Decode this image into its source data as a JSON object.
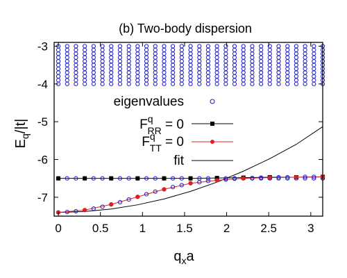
{
  "chart_data": {
    "type": "scatter",
    "title": "(b) Two-body dispersion",
    "xlabel": "q",
    "xlabel_sub": "x",
    "xlabel_tail": "a",
    "ylabel": "E",
    "ylabel_sub": "q",
    "ylabel_tail": "/|t|",
    "xlim": [
      -0.05,
      3.14159
    ],
    "ylim": [
      -7.5,
      -2.9
    ],
    "xticks": [
      0,
      0.5,
      1,
      1.5,
      2,
      2.5,
      3
    ],
    "xticklabels": [
      "0",
      "0.5",
      "1",
      "1.5",
      "2",
      "2.5",
      "3"
    ],
    "yticks": [
      -7,
      -6,
      -5,
      -4,
      -3
    ],
    "yticklabels": [
      "-7",
      "-6",
      "-5",
      "-4",
      "-3"
    ],
    "legend_position": "right-middle",
    "series": [
      {
        "name": "eigenvalues",
        "kind": "open-circles",
        "color": "#1a1acc",
        "x": [
          0.0,
          0.105,
          0.209,
          0.314,
          0.419,
          0.524,
          0.628,
          0.733,
          0.838,
          0.942,
          1.047,
          1.152,
          1.257,
          1.361,
          1.466,
          1.571,
          1.676,
          1.78,
          1.885,
          1.99,
          2.094,
          2.199,
          2.304,
          2.409,
          2.513,
          2.618,
          2.723,
          2.827,
          2.932,
          3.037,
          3.142
        ],
        "band_lower_y": [
          -7.4,
          -7.39,
          -7.37,
          -7.34,
          -7.3,
          -7.25,
          -7.19,
          -7.13,
          -7.06,
          -6.99,
          -6.92,
          -6.85,
          -6.79,
          -6.73,
          -6.68,
          -6.63,
          -6.6,
          -6.57,
          -6.55,
          -6.53,
          -6.51,
          -6.5,
          -6.49,
          -6.48,
          -6.48,
          -6.47,
          -6.47,
          -6.47,
          -6.46,
          -6.46,
          -6.46
        ],
        "band_flat_y": -6.5,
        "continuum_y": [
          -3.0,
          -3.1,
          -3.2,
          -3.3,
          -3.4,
          -3.5,
          -3.6,
          -3.7,
          -3.8,
          -3.9,
          -4.0
        ]
      },
      {
        "name": "F_RR^q = 0",
        "legend_main": "F",
        "legend_sup": "q",
        "legend_sub": "RR",
        "legend_tail": " = 0",
        "kind": "line-squares",
        "color": "#000000",
        "x": [
          0.0,
          0.314,
          0.628,
          0.942,
          1.257,
          1.571,
          1.885,
          2.199,
          2.513,
          2.827,
          3.142
        ],
        "y": [
          -6.5,
          -6.5,
          -6.5,
          -6.5,
          -6.5,
          -6.5,
          -6.49,
          -6.48,
          -6.47,
          -6.47,
          -6.46
        ]
      },
      {
        "name": "F_TT^q = 0",
        "legend_main": "F",
        "legend_sup": "q",
        "legend_sub": "TT",
        "legend_tail": " = 0",
        "kind": "line-circles",
        "color": "#e02020",
        "x": [
          0.0,
          0.314,
          0.628,
          0.942,
          1.257,
          1.571,
          1.885,
          2.199,
          2.513,
          2.827,
          3.142
        ],
        "y": [
          -7.4,
          -7.34,
          -7.19,
          -6.99,
          -6.79,
          -6.63,
          -6.55,
          -6.5,
          -6.48,
          -6.47,
          -6.46
        ]
      },
      {
        "name": "fit",
        "kind": "line",
        "color": "#000000",
        "x": [
          0.0,
          0.314,
          0.628,
          0.942,
          1.257,
          1.571,
          1.885,
          2.199,
          2.513,
          2.827,
          3.142
        ],
        "y": [
          -7.4,
          -7.378,
          -7.311,
          -7.2,
          -7.044,
          -6.844,
          -6.6,
          -6.311,
          -5.978,
          -5.6,
          -5.13
        ]
      }
    ]
  }
}
